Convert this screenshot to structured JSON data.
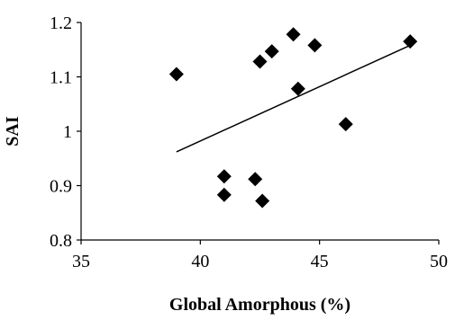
{
  "chart_data": {
    "type": "scatter",
    "title": "",
    "xlabel": "Global Amorphous (%)",
    "ylabel": "SAI",
    "xlim": [
      35,
      50
    ],
    "ylim": [
      0.8,
      1.2
    ],
    "x_ticks": [
      35,
      40,
      45,
      50
    ],
    "y_ticks": [
      0.8,
      0.9,
      1.0,
      1.1,
      1.2
    ],
    "x_tick_labels": [
      "35",
      "40",
      "45",
      "50"
    ],
    "y_tick_labels": [
      "0.8",
      "0.9",
      "1",
      "1.1",
      "1.2"
    ],
    "grid": false,
    "legend": "none",
    "marker": "diamond",
    "marker_color": "#000000",
    "series": [
      {
        "x": [
          39.0,
          41.0,
          41.0,
          42.3,
          42.5,
          42.6,
          43.0,
          43.9,
          44.1,
          44.8,
          46.1,
          48.8
        ],
        "y": [
          1.105,
          0.917,
          0.883,
          0.912,
          1.128,
          0.872,
          1.147,
          1.178,
          1.078,
          1.158,
          1.013,
          1.165
        ]
      }
    ],
    "trendline": {
      "type": "linear",
      "x": [
        39.0,
        48.8
      ],
      "y": [
        0.962,
        1.158
      ]
    }
  }
}
